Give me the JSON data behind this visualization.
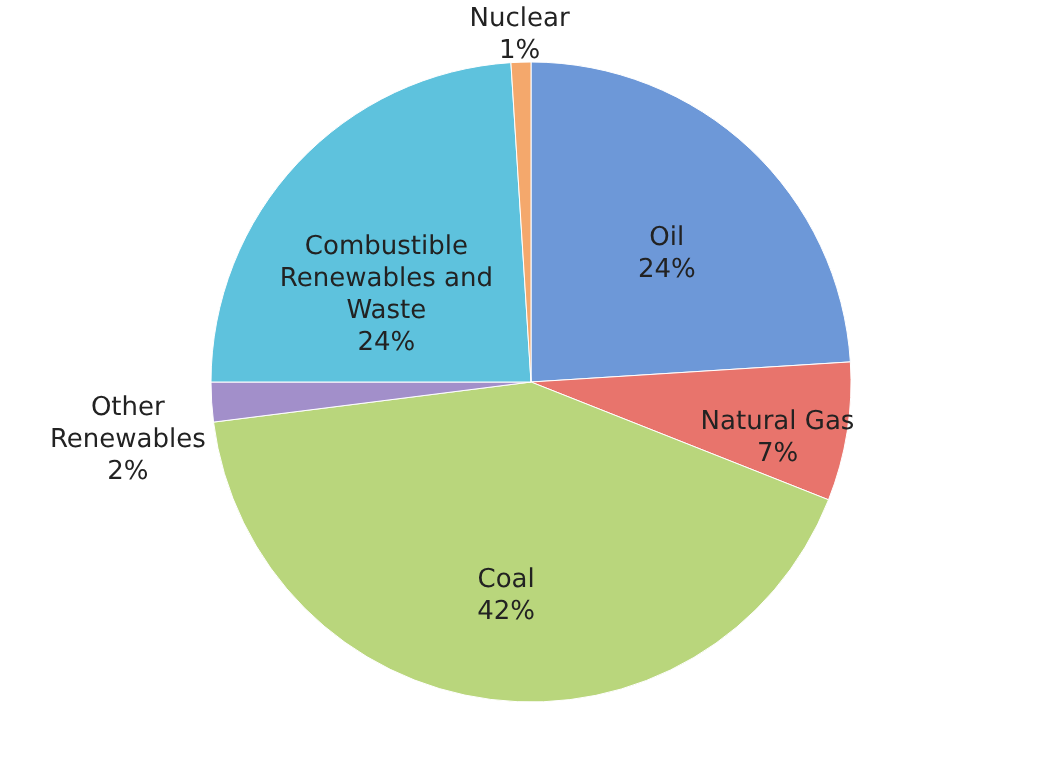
{
  "chart_data": {
    "type": "pie",
    "categories": [
      "Oil",
      "Natural Gas",
      "Coal",
      "Other Renewables",
      "Combustible Renewables and Waste",
      "Nuclear"
    ],
    "values": [
      24,
      7,
      42,
      2,
      24,
      1
    ],
    "value_labels": [
      "24%",
      "7%",
      "42%",
      "2%",
      "24%",
      "1%"
    ],
    "colors": [
      "#6d98d8",
      "#e8746c",
      "#b9d67c",
      "#a28fca",
      "#5ec2dd",
      "#f4a86c"
    ]
  }
}
